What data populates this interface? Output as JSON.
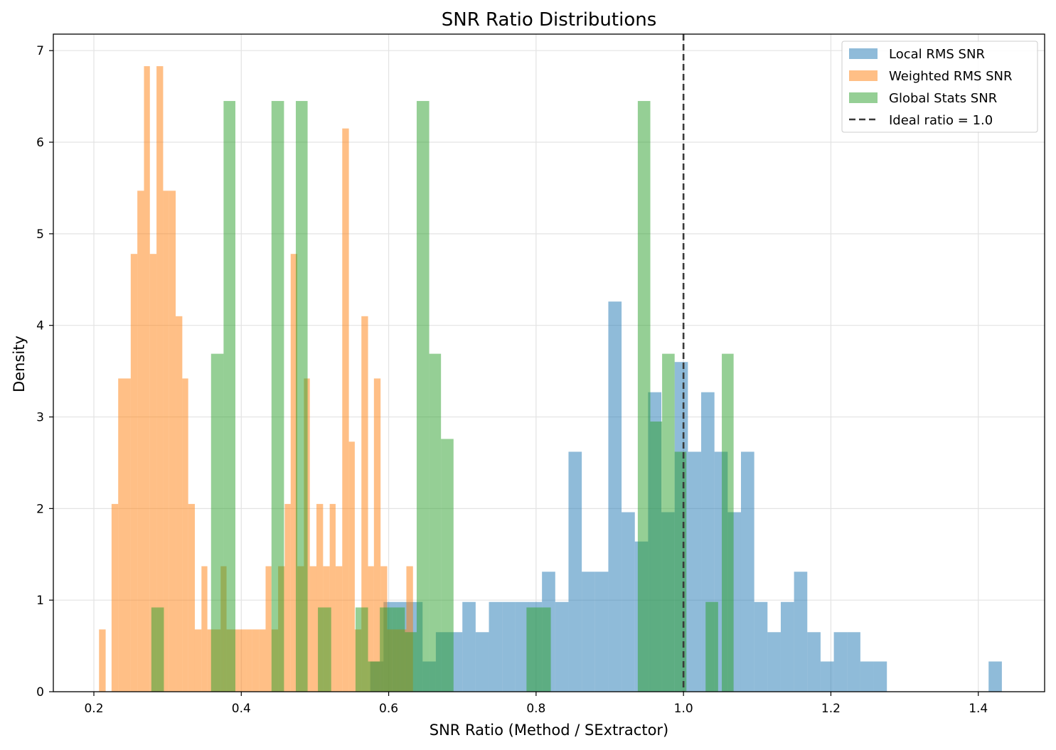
{
  "chart_data": {
    "type": "histogram",
    "title": "SNR Ratio Distributions",
    "xlabel": "SNR Ratio (Method / SExtractor)",
    "ylabel": "Density",
    "xlim": [
      0.145,
      1.49
    ],
    "ylim": [
      0,
      7.18
    ],
    "x_ticks": [
      "0.2",
      "0.4",
      "0.6",
      "0.8",
      "1.0",
      "1.2",
      "1.4"
    ],
    "x_tick_values": [
      0.2,
      0.4,
      0.6,
      0.8,
      1.0,
      1.2,
      1.4
    ],
    "y_ticks": [
      "0",
      "1",
      "2",
      "3",
      "4",
      "5",
      "6",
      "7"
    ],
    "y_tick_values": [
      0,
      1,
      2,
      3,
      4,
      5,
      6,
      7
    ],
    "grid": true,
    "legend_position": "top-right",
    "reference_line": {
      "x": 1.0,
      "label": "Ideal ratio = 1.0",
      "style": "dashed",
      "color": "#3a3a3a"
    },
    "series": [
      {
        "name": "Local RMS SNR",
        "color": "#1f77b4",
        "alpha": 0.5,
        "bins": [
          [
            0.575,
            0.593,
            0.33
          ],
          [
            0.593,
            0.611,
            0.98
          ],
          [
            0.611,
            0.629,
            0.98
          ],
          [
            0.629,
            0.646,
            0.98
          ],
          [
            0.646,
            0.664,
            0.33
          ],
          [
            0.664,
            0.682,
            0.65
          ],
          [
            0.682,
            0.7,
            0.65
          ],
          [
            0.7,
            0.718,
            0.98
          ],
          [
            0.718,
            0.736,
            0.65
          ],
          [
            0.736,
            0.754,
            0.98
          ],
          [
            0.754,
            0.772,
            0.98
          ],
          [
            0.772,
            0.79,
            0.98
          ],
          [
            0.79,
            0.808,
            0.98
          ],
          [
            0.808,
            0.826,
            1.31
          ],
          [
            0.826,
            0.844,
            0.98
          ],
          [
            0.844,
            0.862,
            2.62
          ],
          [
            0.862,
            0.88,
            1.31
          ],
          [
            0.88,
            0.898,
            1.31
          ],
          [
            0.898,
            0.916,
            4.26
          ],
          [
            0.916,
            0.934,
            1.96
          ],
          [
            0.934,
            0.952,
            1.64
          ],
          [
            0.952,
            0.97,
            3.27
          ],
          [
            0.97,
            0.988,
            1.96
          ],
          [
            0.988,
            1.006,
            3.6
          ],
          [
            1.006,
            1.024,
            2.62
          ],
          [
            1.024,
            1.042,
            3.27
          ],
          [
            1.042,
            1.06,
            2.62
          ],
          [
            1.06,
            1.078,
            1.96
          ],
          [
            1.078,
            1.096,
            2.62
          ],
          [
            1.096,
            1.114,
            0.98
          ],
          [
            1.114,
            1.132,
            0.65
          ],
          [
            1.132,
            1.15,
            0.98
          ],
          [
            1.15,
            1.168,
            1.31
          ],
          [
            1.168,
            1.186,
            0.65
          ],
          [
            1.186,
            1.204,
            0.33
          ],
          [
            1.204,
            1.222,
            0.65
          ],
          [
            1.222,
            1.24,
            0.65
          ],
          [
            1.24,
            1.258,
            0.33
          ],
          [
            1.258,
            1.276,
            0.33
          ],
          [
            1.414,
            1.432,
            0.33
          ]
        ]
      },
      {
        "name": "Weighted RMS SNR",
        "color": "#ff7f0e",
        "alpha": 0.5,
        "bins": [
          [
            0.207,
            0.216,
            0.68
          ],
          [
            0.224,
            0.233,
            2.05
          ],
          [
            0.233,
            0.241,
            3.42
          ],
          [
            0.241,
            0.25,
            3.42
          ],
          [
            0.25,
            0.259,
            4.78
          ],
          [
            0.259,
            0.268,
            5.47
          ],
          [
            0.268,
            0.276,
            6.83
          ],
          [
            0.276,
            0.285,
            4.78
          ],
          [
            0.285,
            0.294,
            6.83
          ],
          [
            0.294,
            0.302,
            5.47
          ],
          [
            0.302,
            0.311,
            5.47
          ],
          [
            0.311,
            0.32,
            4.1
          ],
          [
            0.32,
            0.328,
            3.42
          ],
          [
            0.328,
            0.337,
            2.05
          ],
          [
            0.337,
            0.346,
            0.68
          ],
          [
            0.346,
            0.354,
            1.37
          ],
          [
            0.354,
            0.363,
            0.68
          ],
          [
            0.363,
            0.372,
            0.68
          ],
          [
            0.372,
            0.38,
            1.37
          ],
          [
            0.38,
            0.389,
            0.68
          ],
          [
            0.389,
            0.398,
            0.68
          ],
          [
            0.398,
            0.407,
            0.68
          ],
          [
            0.407,
            0.415,
            0.68
          ],
          [
            0.415,
            0.424,
            0.68
          ],
          [
            0.424,
            0.433,
            0.68
          ],
          [
            0.433,
            0.441,
            1.37
          ],
          [
            0.441,
            0.45,
            0.68
          ],
          [
            0.45,
            0.459,
            1.37
          ],
          [
            0.459,
            0.467,
            2.05
          ],
          [
            0.467,
            0.476,
            4.78
          ],
          [
            0.476,
            0.485,
            1.37
          ],
          [
            0.485,
            0.493,
            3.42
          ],
          [
            0.493,
            0.502,
            1.37
          ],
          [
            0.502,
            0.511,
            2.05
          ],
          [
            0.511,
            0.52,
            1.37
          ],
          [
            0.52,
            0.528,
            2.05
          ],
          [
            0.528,
            0.537,
            1.37
          ],
          [
            0.537,
            0.546,
            6.15
          ],
          [
            0.546,
            0.554,
            2.73
          ],
          [
            0.554,
            0.563,
            0.68
          ],
          [
            0.563,
            0.572,
            4.1
          ],
          [
            0.572,
            0.58,
            1.37
          ],
          [
            0.58,
            0.589,
            3.42
          ],
          [
            0.589,
            0.598,
            1.37
          ],
          [
            0.598,
            0.606,
            0.68
          ],
          [
            0.606,
            0.615,
            0.68
          ],
          [
            0.615,
            0.624,
            0.68
          ],
          [
            0.624,
            0.633,
            1.37
          ]
        ]
      },
      {
        "name": "Global Stats SNR",
        "color": "#2ca02c",
        "alpha": 0.5,
        "bins": [
          [
            0.278,
            0.295,
            0.92
          ],
          [
            0.359,
            0.376,
            3.69
          ],
          [
            0.376,
            0.392,
            6.45
          ],
          [
            0.441,
            0.458,
            6.45
          ],
          [
            0.474,
            0.49,
            6.45
          ],
          [
            0.504,
            0.522,
            0.92
          ],
          [
            0.555,
            0.572,
            0.92
          ],
          [
            0.572,
            0.588,
            0.33
          ],
          [
            0.588,
            0.605,
            0.92
          ],
          [
            0.605,
            0.622,
            0.92
          ],
          [
            0.622,
            0.638,
            0.65
          ],
          [
            0.638,
            0.655,
            6.45
          ],
          [
            0.655,
            0.671,
            3.69
          ],
          [
            0.671,
            0.688,
            2.76
          ],
          [
            0.787,
            0.804,
            0.92
          ],
          [
            0.804,
            0.82,
            0.92
          ],
          [
            0.938,
            0.955,
            6.45
          ],
          [
            0.955,
            0.971,
            2.95
          ],
          [
            0.971,
            0.988,
            3.69
          ],
          [
            0.988,
            1.004,
            2.62
          ],
          [
            1.03,
            1.047,
            0.98
          ],
          [
            1.052,
            1.068,
            3.69
          ]
        ]
      }
    ]
  }
}
